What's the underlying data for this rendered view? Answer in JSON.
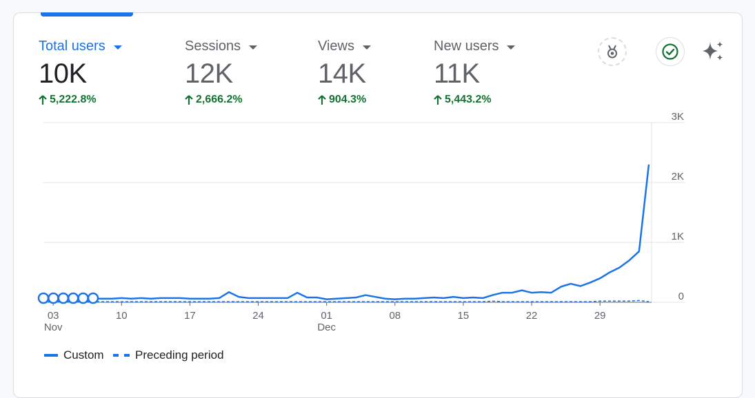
{
  "metrics": [
    {
      "label": "Total users",
      "value": "10K",
      "change": "5,222.8%",
      "active": true
    },
    {
      "label": "Sessions",
      "value": "12K",
      "change": "2,666.2%",
      "active": false
    },
    {
      "label": "Views",
      "value": "14K",
      "change": "904.3%",
      "active": false
    },
    {
      "label": "New users",
      "value": "11K",
      "change": "5,443.2%",
      "active": false
    }
  ],
  "toolbar_icons": [
    "achievement-badge-icon",
    "check-circle-icon",
    "sparkle-insights-icon"
  ],
  "chart_data": {
    "type": "line",
    "ylim": [
      0,
      3000
    ],
    "yticks": [
      {
        "v": 0,
        "label": "0"
      },
      {
        "v": 1000,
        "label": "1K"
      },
      {
        "v": 2000,
        "label": "2K"
      },
      {
        "v": 3000,
        "label": "3K"
      }
    ],
    "xticks": [
      {
        "i": 1,
        "day": "03",
        "month": "Nov"
      },
      {
        "i": 8,
        "day": "10",
        "month": ""
      },
      {
        "i": 15,
        "day": "17",
        "month": ""
      },
      {
        "i": 22,
        "day": "24",
        "month": ""
      },
      {
        "i": 29,
        "day": "01",
        "month": "Dec"
      },
      {
        "i": 36,
        "day": "08",
        "month": ""
      },
      {
        "i": 43,
        "day": "15",
        "month": ""
      },
      {
        "i": 50,
        "day": "22",
        "month": ""
      },
      {
        "i": 57,
        "day": "29",
        "month": ""
      }
    ],
    "grid": true,
    "legend_position": "bottom-left",
    "colors": {
      "custom": "#1a73e8",
      "preceding": "#1a73e8"
    },
    "series": [
      {
        "name": "Custom",
        "style": "solid",
        "values": [
          60,
          50,
          70,
          70,
          70,
          60,
          60,
          60,
          70,
          60,
          70,
          60,
          70,
          70,
          70,
          60,
          60,
          60,
          70,
          170,
          90,
          70,
          70,
          70,
          70,
          70,
          160,
          80,
          80,
          50,
          60,
          70,
          80,
          120,
          90,
          60,
          50,
          60,
          60,
          70,
          80,
          70,
          90,
          70,
          80,
          70,
          120,
          160,
          160,
          200,
          160,
          170,
          160,
          260,
          310,
          270,
          330,
          400,
          500,
          580,
          700,
          850,
          2300
        ]
      },
      {
        "name": "Preceding period",
        "style": "dashed",
        "values": [
          10,
          10,
          10,
          10,
          10,
          10,
          10,
          10,
          10,
          10,
          10,
          10,
          10,
          10,
          10,
          10,
          10,
          10,
          10,
          10,
          10,
          10,
          10,
          10,
          10,
          10,
          10,
          10,
          10,
          10,
          10,
          10,
          10,
          10,
          10,
          10,
          10,
          10,
          10,
          10,
          10,
          10,
          10,
          10,
          10,
          10,
          20,
          10,
          10,
          10,
          10,
          10,
          10,
          10,
          10,
          10,
          10,
          20,
          20,
          20,
          20,
          30,
          10
        ]
      }
    ]
  },
  "legend": [
    {
      "label": "Custom",
      "style": "solid"
    },
    {
      "label": "Preceding period",
      "style": "dashed"
    }
  ]
}
